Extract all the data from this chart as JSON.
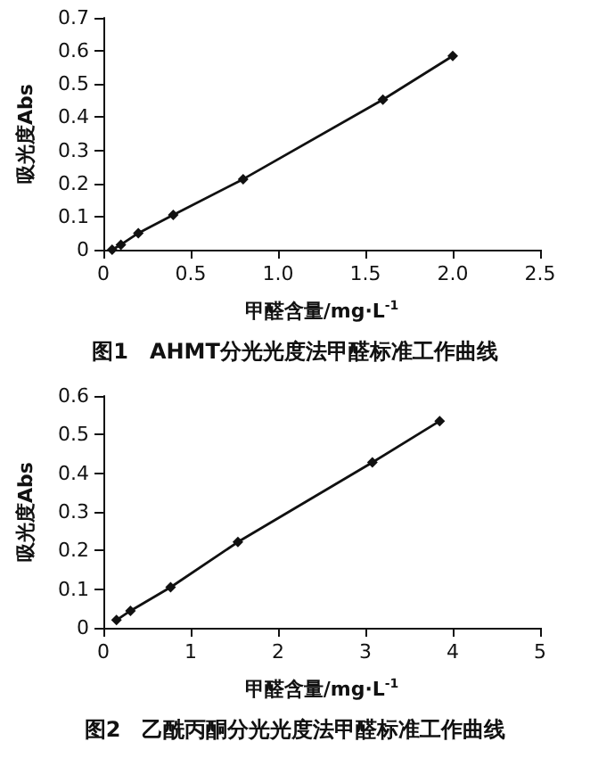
{
  "chart_data": [
    {
      "type": "line",
      "title": "图1　AHMT分光光度法甲醛标准工作曲线",
      "xlabel": "甲醛含量/mg·L$^{-1}$",
      "ylabel": "吸光度Abs",
      "x": [
        0.05,
        0.1,
        0.2,
        0.4,
        0.8,
        1.6,
        2.0
      ],
      "series": [
        {
          "color": "#111111",
          "values": [
            0,
            0.015,
            0.05,
            0.105,
            0.213,
            0.453,
            0.585
          ]
        }
      ],
      "xlim": [
        0,
        2.5
      ],
      "xticks": [
        0,
        0.5,
        {
          "value": 1,
          "label": "1.0"
        },
        1.5,
        {
          "value": 2,
          "label": "2.0"
        },
        2.5
      ],
      "ylim": [
        0,
        0.7
      ],
      "yticks": [
        0,
        0.1,
        0.2,
        0.3,
        0.4,
        0.5,
        0.6,
        0.7
      ],
      "grid": false,
      "marker": "diamond",
      "line_style": "solid"
    },
    {
      "type": "line",
      "title": "图2　乙酰丙酮分光光度法甲醛标准工作曲线",
      "xlabel": "甲醛含量/mg·L$^{-1}$",
      "ylabel": "吸光度Abs",
      "x": [
        0.15,
        0.31,
        0.77,
        1.54,
        3.08,
        3.85
      ],
      "series": [
        {
          "color": "#111111",
          "values": [
            0.02,
            0.044,
            0.105,
            0.222,
            0.428,
            0.535
          ]
        }
      ],
      "xlim": [
        0,
        5
      ],
      "xticks": [
        0,
        1,
        2,
        3,
        4,
        5
      ],
      "ylim": [
        0,
        0.6
      ],
      "yticks": [
        0,
        0.1,
        0.2,
        0.3,
        0.4,
        0.5,
        0.6
      ],
      "grid": false,
      "marker": "diamond",
      "line_style": "solid"
    }
  ]
}
